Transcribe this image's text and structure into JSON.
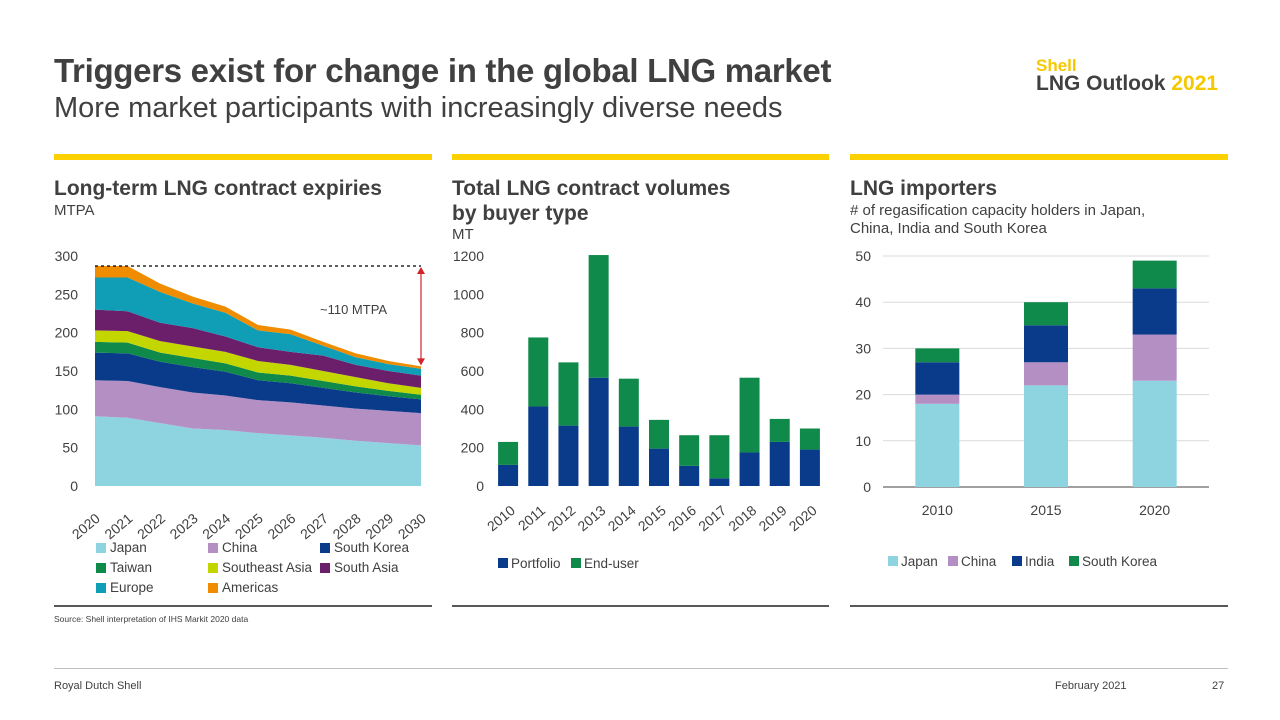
{
  "header": {
    "title": "Triggers exist for change in the global LNG market",
    "subtitle": "More market participants with increasingly diverse needs"
  },
  "brand": {
    "shell": "Shell",
    "outlook": "LNG Outlook",
    "year": "2021"
  },
  "colors": {
    "accent": "#fdd100",
    "japan": "#8dd3e0",
    "china": "#b48fc4",
    "korea": "#0a3a8a",
    "taiwan": "#0f8a4a",
    "seasia": "#c4d600",
    "sasia": "#6b1f6b",
    "europe": "#109db6",
    "americas": "#f08c00",
    "portfolio": "#0a3a8a",
    "enduser": "#0f8a4a"
  },
  "panels": {
    "p1": {
      "title": "Long-term LNG contract expiries",
      "subtitle": "MTPA"
    },
    "p2": {
      "title_line1": "Total LNG contract volumes",
      "title_line2": "by buyer type",
      "subtitle": "MT"
    },
    "p3": {
      "title": "LNG importers",
      "subtitle_line1": "# of regasification capacity holders in Japan,",
      "subtitle_line2": "China, India and South Korea"
    }
  },
  "chart_data": [
    {
      "type": "area",
      "title": "Long-term LNG contract expiries",
      "ylabel": "MTPA",
      "ylim": [
        0,
        300
      ],
      "yticks": [
        0,
        50,
        100,
        150,
        200,
        250,
        300
      ],
      "x": [
        "2020",
        "2021",
        "2022",
        "2023",
        "2024",
        "2025",
        "2026",
        "2027",
        "2028",
        "2029",
        "2030"
      ],
      "series": [
        {
          "name": "Japan",
          "color": "#8dd3e0",
          "values": [
            91,
            89,
            82,
            75,
            73,
            69,
            66,
            63,
            59,
            56,
            53
          ]
        },
        {
          "name": "China",
          "color": "#b48fc4",
          "values": [
            47,
            48,
            47,
            47,
            45,
            43,
            43,
            42,
            42,
            42,
            42
          ]
        },
        {
          "name": "South Korea",
          "color": "#0a3a8a",
          "values": [
            36,
            36,
            33,
            33,
            31,
            26,
            25,
            23,
            21,
            19,
            18
          ]
        },
        {
          "name": "Taiwan",
          "color": "#0f8a4a",
          "values": [
            14,
            14,
            12,
            12,
            11,
            10,
            10,
            9,
            8,
            7,
            6
          ]
        },
        {
          "name": "Southeast Asia",
          "color": "#c4d600",
          "values": [
            15,
            15,
            15,
            15,
            15,
            15,
            14,
            13,
            12,
            10,
            9
          ]
        },
        {
          "name": "South Asia",
          "color": "#6b1f6b",
          "values": [
            27,
            26,
            24,
            24,
            20,
            18,
            17,
            20,
            16,
            16,
            16
          ]
        },
        {
          "name": "Europe",
          "color": "#109db6",
          "values": [
            42,
            44,
            40,
            32,
            31,
            22,
            23,
            13,
            10,
            9,
            9
          ]
        },
        {
          "name": "Americas",
          "color": "#f08c00",
          "values": [
            15,
            15,
            11,
            9,
            8,
            7,
            6,
            5,
            5,
            4,
            3
          ]
        }
      ],
      "annotation": "~110 MTPA",
      "legend": [
        "Japan",
        "China",
        "South Korea",
        "Taiwan",
        "Southeast Asia",
        "South Asia",
        "Europe",
        "Americas"
      ]
    },
    {
      "type": "bar",
      "title": "Total LNG contract volumes by buyer type",
      "ylabel": "MT",
      "ylim": [
        0,
        1200
      ],
      "yticks": [
        0,
        200,
        400,
        600,
        800,
        1000,
        1200
      ],
      "categories": [
        "2010",
        "2011",
        "2012",
        "2013",
        "2014",
        "2015",
        "2016",
        "2017",
        "2018",
        "2019",
        "2020"
      ],
      "series": [
        {
          "name": "Portfolio",
          "color": "#0a3a8a",
          "values": [
            110,
            415,
            315,
            565,
            310,
            195,
            105,
            40,
            175,
            230,
            190
          ]
        },
        {
          "name": "End-user",
          "color": "#0f8a4a",
          "values": [
            120,
            360,
            330,
            640,
            250,
            150,
            160,
            225,
            390,
            120,
            110
          ]
        }
      ]
    },
    {
      "type": "bar",
      "title": "LNG importers",
      "subtitle": "# of regasification capacity holders in Japan, China, India and South Korea",
      "ylim": [
        0,
        50
      ],
      "yticks": [
        0,
        10,
        20,
        30,
        40,
        50
      ],
      "categories": [
        "2010",
        "2015",
        "2020"
      ],
      "series": [
        {
          "name": "Japan",
          "color": "#8dd3e0",
          "values": [
            18,
            22,
            23
          ]
        },
        {
          "name": "China",
          "color": "#b48fc4",
          "values": [
            2,
            5,
            10
          ]
        },
        {
          "name": "India",
          "color": "#0a3a8a",
          "values": [
            7,
            8,
            10
          ]
        },
        {
          "name": "South Korea",
          "color": "#0f8a4a",
          "values": [
            3,
            5,
            6
          ]
        }
      ]
    }
  ],
  "source": "Source: Shell interpretation of IHS Markit 2020 data",
  "footer": {
    "company": "Royal Dutch Shell",
    "date": "February 2021",
    "page": "27"
  }
}
